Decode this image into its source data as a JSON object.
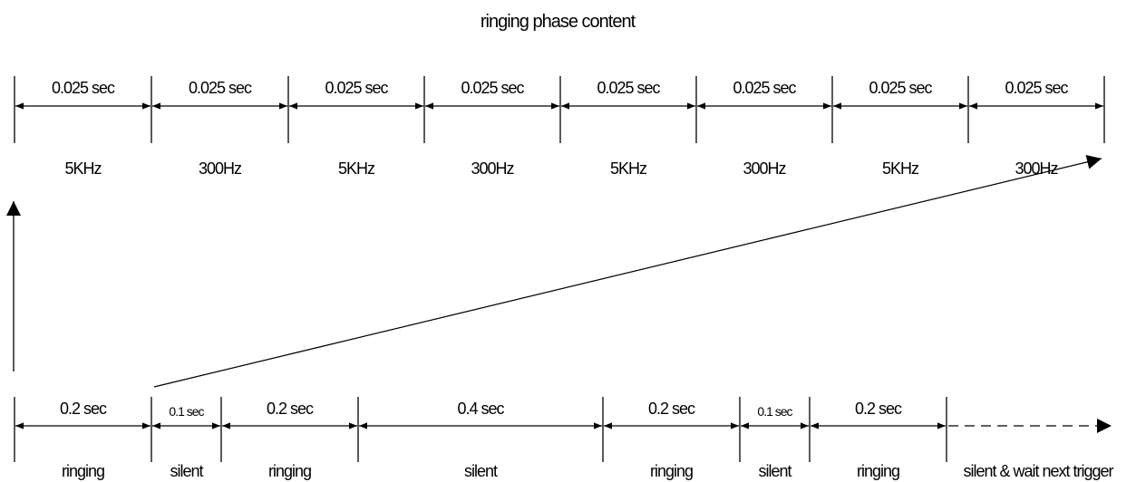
{
  "title": "ringing phase content",
  "top_row": {
    "segments": [
      {
        "duration": "0.025 sec",
        "label": "5KHz"
      },
      {
        "duration": "0.025 sec",
        "label": "300Hz"
      },
      {
        "duration": "0.025 sec",
        "label": "5KHz"
      },
      {
        "duration": "0.025 sec",
        "label": "300Hz"
      },
      {
        "duration": "0.025 sec",
        "label": "5KHz"
      },
      {
        "duration": "0.025 sec",
        "label": "300Hz"
      },
      {
        "duration": "0.025 sec",
        "label": "5KHz"
      },
      {
        "duration": "0.025 sec",
        "label": "300Hz"
      }
    ]
  },
  "bottom_row": {
    "segments": [
      {
        "duration": "0.2 sec",
        "label": "ringing"
      },
      {
        "duration": "0.1 sec",
        "label": "silent"
      },
      {
        "duration": "0.2 sec",
        "label": "ringing"
      },
      {
        "duration": "0.4 sec",
        "label": "silent"
      },
      {
        "duration": "0.2 sec",
        "label": "ringing"
      },
      {
        "duration": "0.1 sec",
        "label": "silent"
      },
      {
        "duration": "0.2 sec",
        "label": "ringing"
      }
    ],
    "tail_label": "silent & wait next trigger"
  }
}
